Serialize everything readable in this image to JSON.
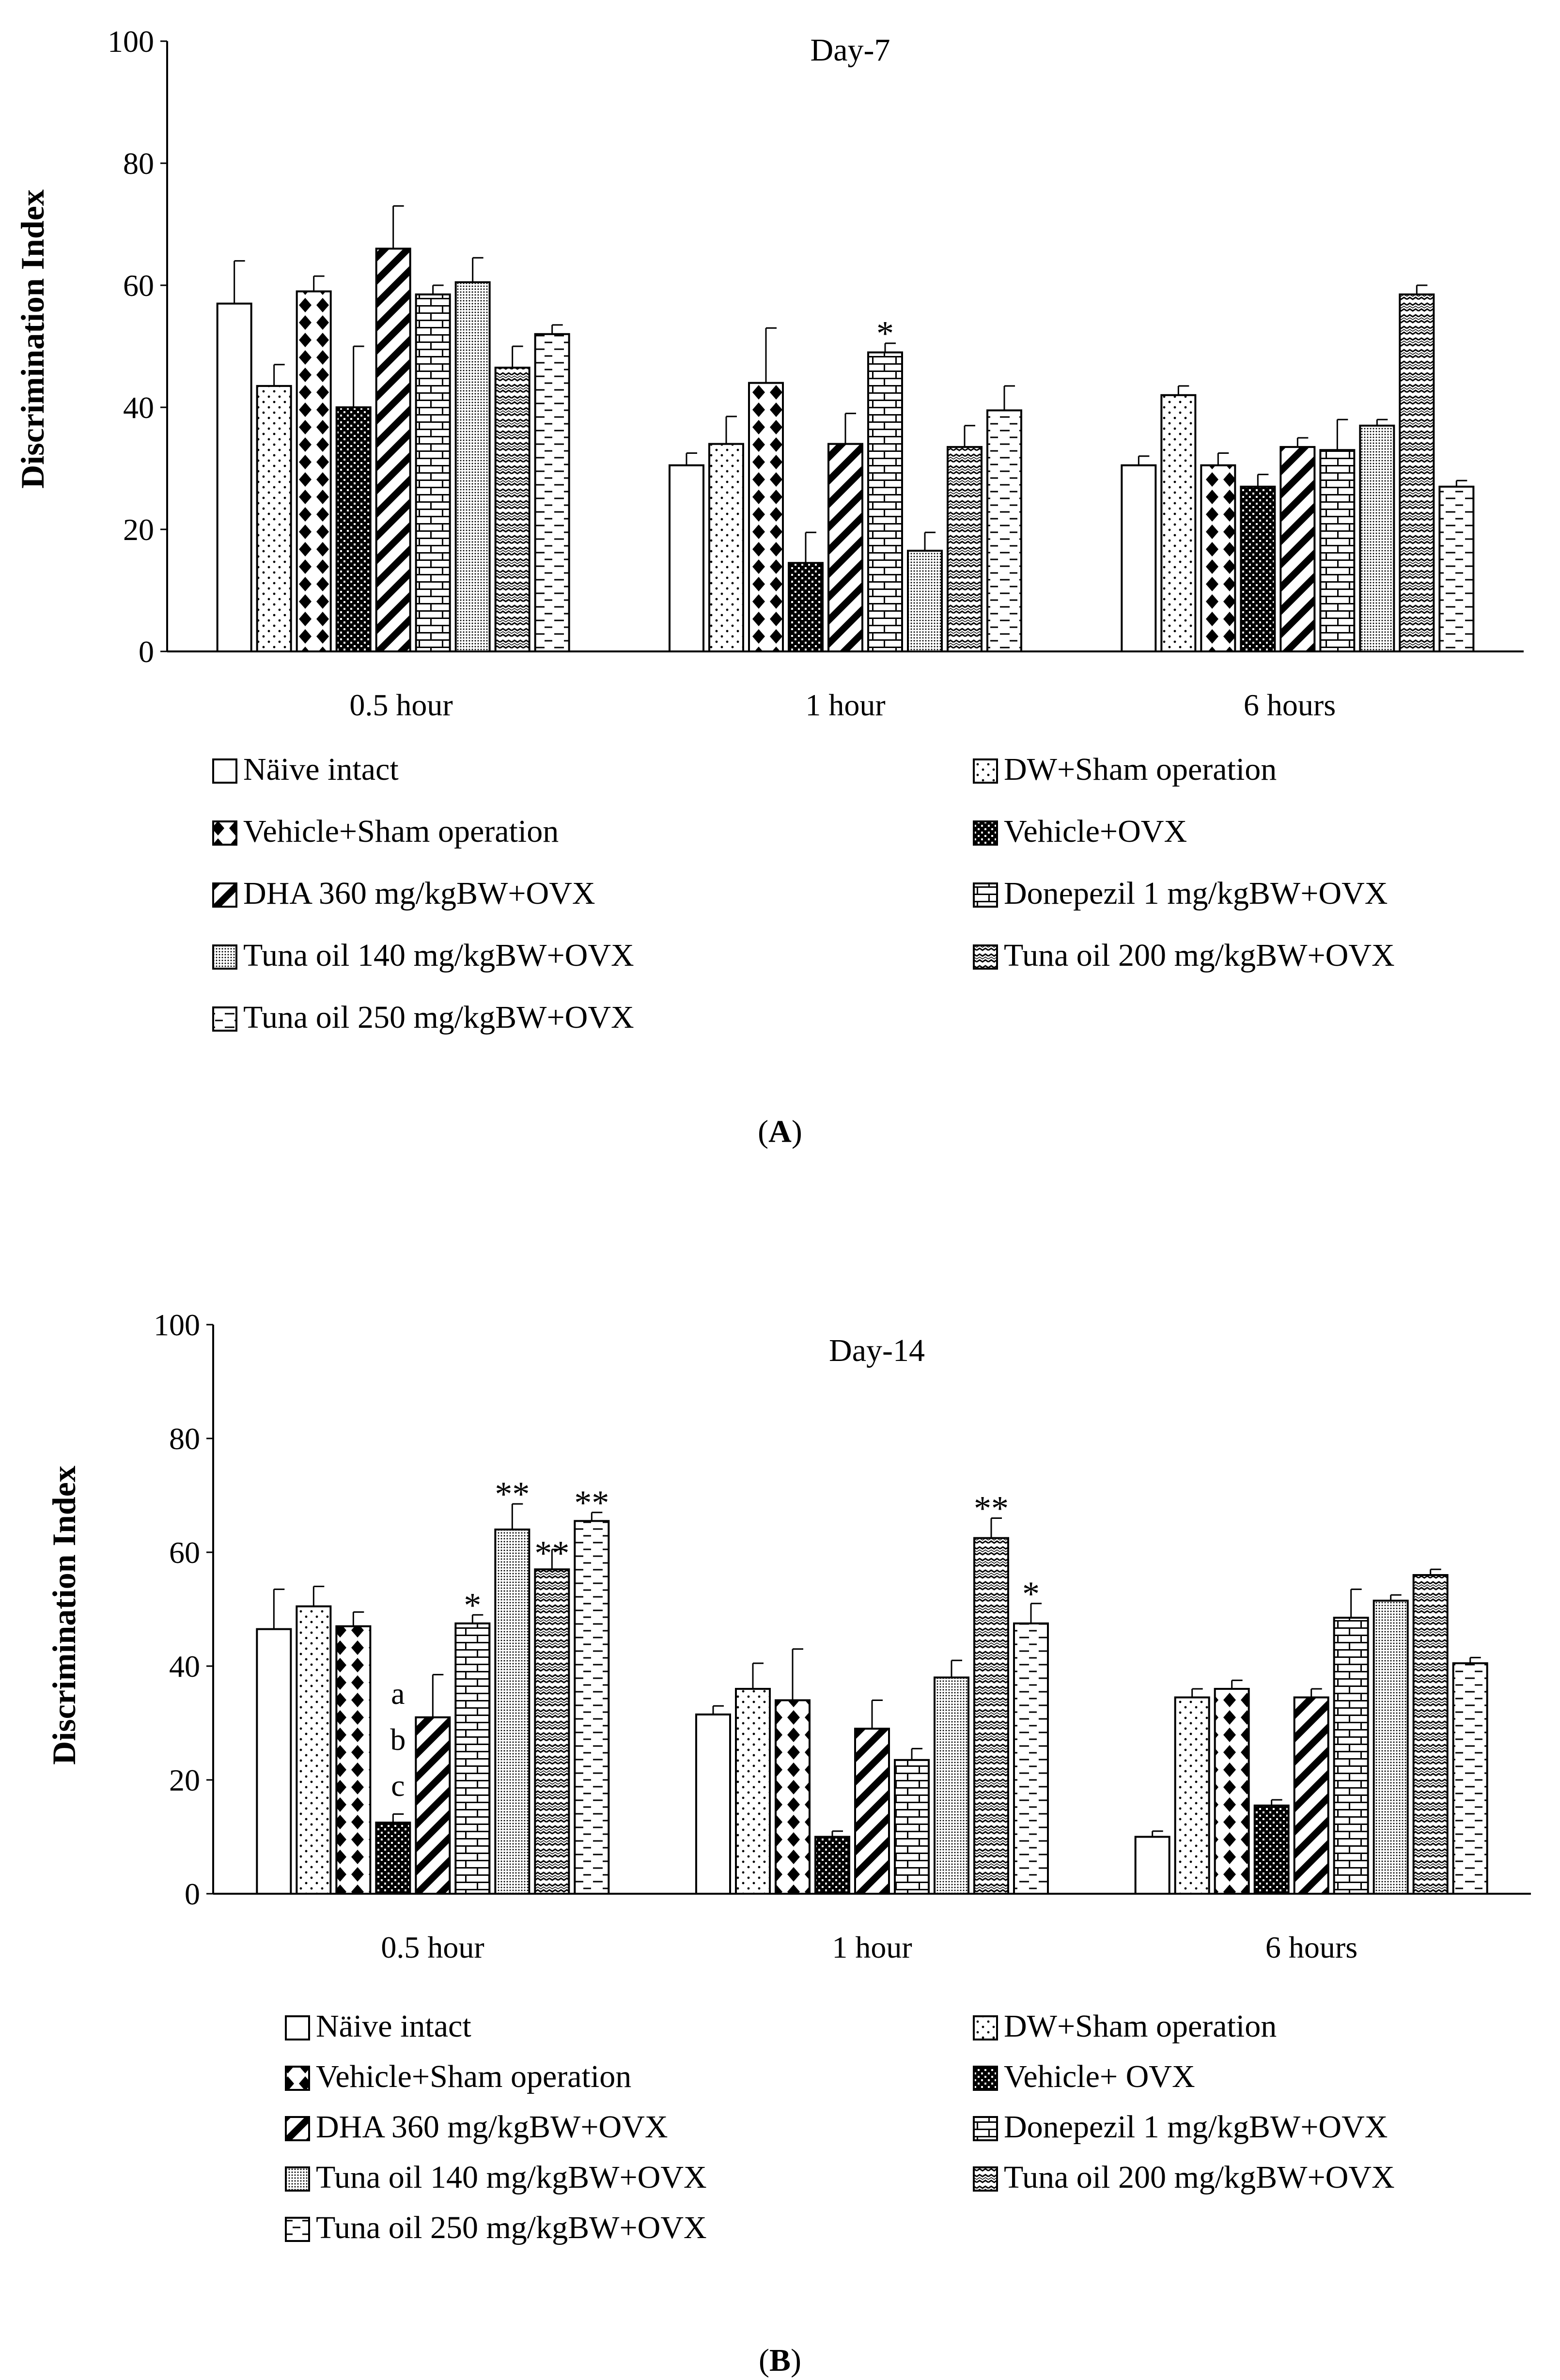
{
  "chart_data": [
    {
      "panel_label": "A",
      "type": "bar",
      "title": "Day-7",
      "ylabel": "Discrimination Index",
      "xlabel": "",
      "ylim": [
        0,
        100
      ],
      "yticks": [
        "0",
        "20",
        "40",
        "60",
        "80",
        "100"
      ],
      "categories": [
        "0.5 hour",
        "1 hour",
        "6 hours"
      ],
      "series": [
        {
          "name": "Näive intact",
          "pattern": "plain",
          "values": [
            57,
            30.5,
            30.5
          ],
          "errors": [
            7,
            2,
            1.5
          ]
        },
        {
          "name": "DW+Sham operation",
          "pattern": "dots",
          "values": [
            43.5,
            34,
            42
          ],
          "errors": [
            3.5,
            4.5,
            1.5
          ]
        },
        {
          "name": "Vehicle+Sham operation",
          "pattern": "diamonds",
          "values": [
            59,
            44,
            30.5
          ],
          "errors": [
            2.5,
            9,
            2
          ]
        },
        {
          "name": "Vehicle+OVX",
          "pattern": "darkcheck",
          "values": [
            40,
            14.5,
            27
          ],
          "errors": [
            10,
            5,
            2
          ]
        },
        {
          "name": "DHA 360 mg/kgBW+OVX",
          "pattern": "diagonal",
          "values": [
            66,
            34,
            33.5
          ],
          "errors": [
            7,
            5,
            1.5
          ]
        },
        {
          "name": "Donepezil 1 mg/kgBW+OVX",
          "pattern": "brick",
          "values": [
            58.5,
            49,
            33
          ],
          "errors": [
            1.5,
            1.5,
            5
          ]
        },
        {
          "name": "Tuna oil 140 mg/kgBW+OVX",
          "pattern": "finegrid",
          "values": [
            60.5,
            16.5,
            37
          ],
          "errors": [
            4,
            3,
            1
          ]
        },
        {
          "name": "Tuna oil 200 mg/kgBW+OVX",
          "pattern": "wave",
          "values": [
            46.5,
            33.5,
            58.5
          ],
          "errors": [
            3.5,
            3.5,
            1.5
          ]
        },
        {
          "name": "Tuna oil 250 mg/kgBW+OVX",
          "pattern": "dashes",
          "values": [
            52,
            39.5,
            27
          ],
          "errors": [
            1.5,
            4,
            1
          ]
        }
      ],
      "annotations": [
        {
          "text": "*",
          "category": "1 hour",
          "series": "Donepezil 1 mg/kgBW+OVX"
        }
      ]
    },
    {
      "panel_label": "B",
      "type": "bar",
      "title": "Day-14",
      "ylabel": "Discrimination Index",
      "xlabel": "",
      "ylim": [
        0,
        100
      ],
      "yticks": [
        "0",
        "20",
        "40",
        "60",
        "80",
        "100"
      ],
      "categories": [
        "0.5 hour",
        "1 hour",
        "6 hours"
      ],
      "series": [
        {
          "name": "Näive intact",
          "pattern": "plain",
          "values": [
            46.5,
            31.5,
            10
          ],
          "errors": [
            7,
            1.5,
            1
          ]
        },
        {
          "name": "DW+Sham operation",
          "pattern": "dots",
          "values": [
            50.5,
            36,
            34.5
          ],
          "errors": [
            3.5,
            4.5,
            1.5
          ]
        },
        {
          "name": "Vehicle+Sham operation",
          "pattern": "diamonds",
          "values": [
            47,
            34,
            36
          ],
          "errors": [
            2.5,
            9,
            1.5
          ]
        },
        {
          "name": "Vehicle+ OVX",
          "pattern": "darkcheck",
          "values": [
            12.5,
            10,
            15.5
          ],
          "errors": [
            1.5,
            1,
            1
          ]
        },
        {
          "name": "DHA 360 mg/kgBW+OVX",
          "pattern": "diagonal",
          "values": [
            31,
            29,
            34.5
          ],
          "errors": [
            7.5,
            5,
            1.5
          ]
        },
        {
          "name": "Donepezil 1 mg/kgBW+OVX",
          "pattern": "brick",
          "values": [
            47.5,
            23.5,
            48.5
          ],
          "errors": [
            1.5,
            2,
            5
          ]
        },
        {
          "name": "Tuna oil 140 mg/kgBW+OVX",
          "pattern": "finegrid",
          "values": [
            64,
            38,
            51.5
          ],
          "errors": [
            4.5,
            3,
            1
          ]
        },
        {
          "name": "Tuna oil 200 mg/kgBW+OVX",
          "pattern": "wave",
          "values": [
            57,
            62.5,
            56
          ],
          "errors": [
            3.5,
            3.5,
            1
          ]
        },
        {
          "name": "Tuna oil 250 mg/kgBW+OVX",
          "pattern": "dashes",
          "values": [
            65.5,
            47.5,
            40.5
          ],
          "errors": [
            1.5,
            3.5,
            1
          ]
        }
      ],
      "annotations": [
        {
          "text": "a",
          "category": "0.5 hour",
          "series": "Vehicle+ OVX"
        },
        {
          "text": "b",
          "category": "0.5 hour",
          "series": "Vehicle+ OVX"
        },
        {
          "text": "c",
          "category": "0.5 hour",
          "series": "Vehicle+ OVX"
        },
        {
          "text": "*",
          "category": "0.5 hour",
          "series": "Donepezil 1 mg/kgBW+OVX"
        },
        {
          "text": "**",
          "category": "0.5 hour",
          "series": "Tuna oil 140 mg/kgBW+OVX"
        },
        {
          "text": "**",
          "category": "0.5 hour",
          "series": "Tuna oil 200 mg/kgBW+OVX"
        },
        {
          "text": "**",
          "category": "0.5 hour",
          "series": "Tuna oil 250 mg/kgBW+OVX"
        },
        {
          "text": "**",
          "category": "1 hour",
          "series": "Tuna oil 200 mg/kgBW+OVX"
        },
        {
          "text": "*",
          "category": "1 hour",
          "series": "Tuna oil 250 mg/kgBW+OVX"
        }
      ]
    }
  ]
}
